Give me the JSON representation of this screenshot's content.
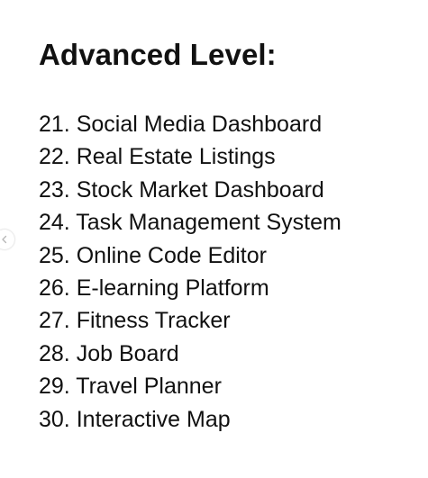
{
  "title": "Advanced Level:",
  "items": [
    {
      "num": "21.",
      "label": "Social Media Dashboard"
    },
    {
      "num": "22.",
      "label": "Real Estate Listings"
    },
    {
      "num": "23.",
      "label": "Stock Market Dashboard"
    },
    {
      "num": "24.",
      "label": "Task Management System"
    },
    {
      "num": "25.",
      "label": "Online Code Editor"
    },
    {
      "num": "26.",
      "label": "E-learning Platform"
    },
    {
      "num": "27.",
      "label": "Fitness Tracker"
    },
    {
      "num": "28.",
      "label": "Job Board"
    },
    {
      "num": "29.",
      "label": "Travel Planner"
    },
    {
      "num": "30.",
      "label": "Interactive Map"
    }
  ],
  "controls": {
    "previous_icon": "chevron-left-icon"
  },
  "colors": {
    "text": "#111111",
    "background": "#ffffff"
  }
}
